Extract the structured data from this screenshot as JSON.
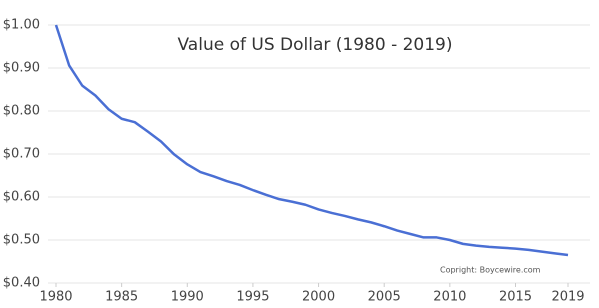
{
  "chart_data": {
    "type": "line",
    "title": "Value of US Dollar (1980 - 2019)",
    "annotation": "Copright: Boycewire.com",
    "x": [
      1980,
      1981,
      1982,
      1983,
      1984,
      1985,
      1986,
      1987,
      1988,
      1989,
      1990,
      1991,
      1992,
      1993,
      1994,
      1995,
      1996,
      1997,
      1998,
      1999,
      2000,
      2001,
      2002,
      2003,
      2004,
      2005,
      2006,
      2007,
      2008,
      2009,
      2010,
      2011,
      2012,
      2013,
      2014,
      2015,
      2016,
      2017,
      2018,
      2019
    ],
    "series": [
      {
        "color": "#4a6fd4",
        "values": [
          1.0,
          0.906,
          0.859,
          0.836,
          0.804,
          0.782,
          0.774,
          0.752,
          0.729,
          0.699,
          0.676,
          0.658,
          0.648,
          0.637,
          0.628,
          0.616,
          0.605,
          0.595,
          0.589,
          0.582,
          0.571,
          0.563,
          0.556,
          0.548,
          0.541,
          0.532,
          0.522,
          0.514,
          0.506,
          0.506,
          0.5,
          0.491,
          0.487,
          0.484,
          0.482,
          0.48,
          0.477,
          0.473,
          0.469,
          0.465
        ]
      }
    ],
    "xlim": [
      1980,
      2019
    ],
    "xticks": [
      1980,
      1985,
      1990,
      1995,
      2000,
      2005,
      2010,
      2015,
      2019
    ],
    "ylim": [
      0.4,
      1.0
    ],
    "yticks": [
      {
        "value": 0.4,
        "label": "$0.40"
      },
      {
        "value": 0.5,
        "label": "$0.50"
      },
      {
        "value": 0.6,
        "label": "$0.60"
      },
      {
        "value": 0.7,
        "label": "$0.70"
      },
      {
        "value": 0.8,
        "label": "$0.80"
      },
      {
        "value": 0.9,
        "label": "$0.90"
      },
      {
        "value": 1.0,
        "label": "$1.00"
      }
    ],
    "grid": true
  }
}
